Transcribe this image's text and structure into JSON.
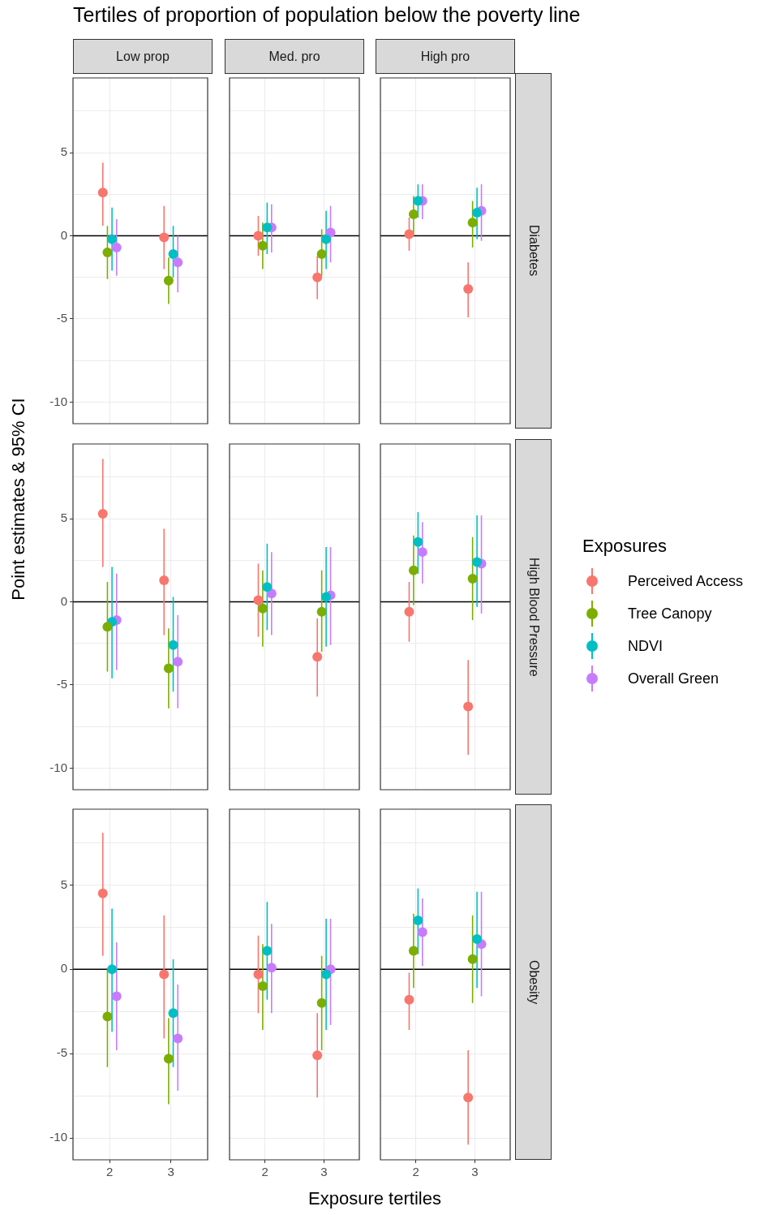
{
  "chart_data": [
    {
      "type": "scatter",
      "title": "Tertiles of proportion of population below the poverty line",
      "subtitle": "Low prop",
      "categories": [
        "2",
        "3"
      ],
      "ylim": [
        -11.3,
        9.5
      ],
      "yticks": [
        -10,
        {
          "value": -7.5,
          "label": null
        },
        -5,
        {
          "value": -2.5,
          "label": null
        },
        0,
        {
          "value": 2.5,
          "label": null
        },
        5,
        {
          "value": 7.5,
          "label": null
        }
      ],
      "grid": true,
      "marker": "circle",
      "tick_labels": "y",
      "ref_lines": [
        {
          "axis": "y",
          "value": 0,
          "color": "#000000"
        }
      ],
      "series": [
        {
          "color": "#f8766d",
          "values": [
            2.6,
            -0.1
          ],
          "errors": [
            [
              0.6,
              4.4
            ],
            [
              -2.0,
              1.8
            ]
          ]
        },
        {
          "color": "#7cae00",
          "values": [
            -1.0,
            -2.7
          ],
          "errors": [
            [
              -2.6,
              0.6
            ],
            [
              -4.1,
              -1.3
            ]
          ]
        },
        {
          "color": "#00bfc4",
          "values": [
            -0.2,
            -1.1
          ],
          "errors": [
            [
              -2.1,
              1.7
            ],
            [
              -2.5,
              0.6
            ]
          ]
        },
        {
          "color": "#c77cff",
          "values": [
            -0.7,
            -1.6
          ],
          "errors": [
            [
              -2.4,
              1.0
            ],
            [
              -3.4,
              0.0
            ]
          ]
        }
      ]
    },
    {
      "type": "scatter",
      "subtitle": "Med. pro",
      "categories": [
        "2",
        "3"
      ],
      "ylim": [
        -11.3,
        9.5
      ],
      "yticks": [
        -10,
        {
          "value": -7.5,
          "label": null
        },
        -5,
        {
          "value": -2.5,
          "label": null
        },
        0,
        {
          "value": 2.5,
          "label": null
        },
        5,
        {
          "value": 7.5,
          "label": null
        }
      ],
      "grid": true,
      "marker": "circle",
      "tick_labels": false,
      "ref_lines": [
        {
          "axis": "y",
          "value": 0,
          "color": "#000000"
        }
      ],
      "series": [
        {
          "color": "#f8766d",
          "values": [
            0.0,
            -2.5
          ],
          "errors": [
            [
              -1.2,
              1.2
            ],
            [
              -3.8,
              -1.2
            ]
          ]
        },
        {
          "color": "#7cae00",
          "values": [
            -0.6,
            -1.1
          ],
          "errors": [
            [
              -2.0,
              0.8
            ],
            [
              -2.4,
              0.4
            ]
          ]
        },
        {
          "color": "#00bfc4",
          "values": [
            0.5,
            -0.2
          ],
          "errors": [
            [
              -1.1,
              2.0
            ],
            [
              -2.0,
              1.5
            ]
          ]
        },
        {
          "color": "#c77cff",
          "values": [
            0.5,
            0.2
          ],
          "errors": [
            [
              -1.0,
              1.9
            ],
            [
              -1.6,
              1.8
            ]
          ]
        }
      ]
    },
    {
      "type": "scatter",
      "subtitle": "High pro",
      "y2label": "Diabetes",
      "categories": [
        "2",
        "3"
      ],
      "ylim": [
        -11.3,
        9.5
      ],
      "yticks": [
        -10,
        {
          "value": -7.5,
          "label": null
        },
        -5,
        {
          "value": -2.5,
          "label": null
        },
        0,
        {
          "value": 2.5,
          "label": null
        },
        5,
        {
          "value": 7.5,
          "label": null
        }
      ],
      "grid": true,
      "marker": "circle",
      "tick_labels": false,
      "ref_lines": [
        {
          "axis": "y",
          "value": 0,
          "color": "#000000"
        }
      ],
      "series": [
        {
          "color": "#f8766d",
          "values": [
            0.1,
            -3.2
          ],
          "errors": [
            [
              -0.9,
              1.1
            ],
            [
              -4.9,
              -1.6
            ]
          ]
        },
        {
          "color": "#7cae00",
          "values": [
            1.3,
            0.8
          ],
          "errors": [
            [
              0.1,
              2.4
            ],
            [
              -0.7,
              2.1
            ]
          ]
        },
        {
          "color": "#00bfc4",
          "values": [
            2.1,
            1.4
          ],
          "errors": [
            [
              1.1,
              3.1
            ],
            [
              -0.2,
              2.9
            ]
          ]
        },
        {
          "color": "#c77cff",
          "values": [
            2.1,
            1.5
          ],
          "errors": [
            [
              1.0,
              3.1
            ],
            [
              -0.3,
              3.1
            ]
          ]
        }
      ]
    },
    {
      "type": "scatter",
      "ylabel": "Point estimates & 95% CI",
      "categories": [
        "2",
        "3"
      ],
      "ylim": [
        -11.3,
        9.5
      ],
      "yticks": [
        -10,
        {
          "value": -7.5,
          "label": null
        },
        -5,
        {
          "value": -2.5,
          "label": null
        },
        0,
        {
          "value": 2.5,
          "label": null
        },
        5,
        {
          "value": 7.5,
          "label": null
        }
      ],
      "grid": true,
      "marker": "circle",
      "tick_labels": "y",
      "ref_lines": [
        {
          "axis": "y",
          "value": 0,
          "color": "#000000"
        }
      ],
      "series": [
        {
          "color": "#f8766d",
          "values": [
            5.3,
            1.3
          ],
          "errors": [
            [
              2.1,
              8.6
            ],
            [
              -2.0,
              4.4
            ]
          ]
        },
        {
          "color": "#7cae00",
          "values": [
            -1.5,
            -4.0
          ],
          "errors": [
            [
              -4.2,
              1.2
            ],
            [
              -6.4,
              -1.6
            ]
          ]
        },
        {
          "color": "#00bfc4",
          "values": [
            -1.2,
            -2.6
          ],
          "errors": [
            [
              -4.6,
              2.1
            ],
            [
              -5.4,
              0.3
            ]
          ]
        },
        {
          "color": "#c77cff",
          "values": [
            -1.1,
            -3.6
          ],
          "errors": [
            [
              -4.1,
              1.7
            ],
            [
              -6.4,
              -0.8
            ]
          ]
        }
      ]
    },
    {
      "type": "scatter",
      "categories": [
        "2",
        "3"
      ],
      "ylim": [
        -11.3,
        9.5
      ],
      "yticks": [
        -10,
        {
          "value": -7.5,
          "label": null
        },
        -5,
        {
          "value": -2.5,
          "label": null
        },
        0,
        {
          "value": 2.5,
          "label": null
        },
        5,
        {
          "value": 7.5,
          "label": null
        }
      ],
      "grid": true,
      "marker": "circle",
      "tick_labels": false,
      "ref_lines": [
        {
          "axis": "y",
          "value": 0,
          "color": "#000000"
        }
      ],
      "series": [
        {
          "color": "#f8766d",
          "values": [
            0.1,
            -3.3
          ],
          "errors": [
            [
              -2.1,
              2.3
            ],
            [
              -5.7,
              -1.0
            ]
          ]
        },
        {
          "color": "#7cae00",
          "values": [
            -0.4,
            -0.6
          ],
          "errors": [
            [
              -2.7,
              1.9
            ],
            [
              -3.0,
              1.9
            ]
          ]
        },
        {
          "color": "#00bfc4",
          "values": [
            0.9,
            0.3
          ],
          "errors": [
            [
              -1.7,
              3.5
            ],
            [
              -2.7,
              3.3
            ]
          ]
        },
        {
          "color": "#c77cff",
          "values": [
            0.5,
            0.4
          ],
          "errors": [
            [
              -2.0,
              3.0
            ],
            [
              -2.6,
              3.3
            ]
          ]
        }
      ]
    },
    {
      "type": "scatter",
      "y2label": "High Blood Pressure",
      "legend": "right",
      "legend_title": "Exposures",
      "categories": [
        "2",
        "3"
      ],
      "ylim": [
        -11.3,
        9.5
      ],
      "yticks": [
        -10,
        {
          "value": -7.5,
          "label": null
        },
        -5,
        {
          "value": -2.5,
          "label": null
        },
        0,
        {
          "value": 2.5,
          "label": null
        },
        5,
        {
          "value": 7.5,
          "label": null
        }
      ],
      "grid": true,
      "marker": "circle",
      "tick_labels": false,
      "ref_lines": [
        {
          "axis": "y",
          "value": 0,
          "color": "#000000"
        }
      ],
      "series": [
        {
          "name": "Perceived Access",
          "color": "#f8766d",
          "values": [
            -0.6,
            -6.3
          ],
          "errors": [
            [
              -2.4,
              1.2
            ],
            [
              -9.2,
              -3.5
            ]
          ]
        },
        {
          "name": "Tree Canopy",
          "color": "#7cae00",
          "values": [
            1.9,
            1.4
          ],
          "errors": [
            [
              -0.2,
              4.0
            ],
            [
              -1.1,
              3.9
            ]
          ]
        },
        {
          "name": "NDVI",
          "color": "#00bfc4",
          "values": [
            3.6,
            2.4
          ],
          "errors": [
            [
              1.7,
              5.4
            ],
            [
              -0.3,
              5.2
            ]
          ]
        },
        {
          "name": "Overall Green",
          "color": "#c77cff",
          "values": [
            3.0,
            2.3
          ],
          "errors": [
            [
              1.1,
              4.8
            ],
            [
              -0.7,
              5.2
            ]
          ]
        }
      ]
    },
    {
      "type": "scatter",
      "categories": [
        "2",
        "3"
      ],
      "ylim": [
        -11.3,
        9.5
      ],
      "yticks": [
        -10,
        {
          "value": -7.5,
          "label": null
        },
        -5,
        {
          "value": -2.5,
          "label": null
        },
        0,
        {
          "value": 2.5,
          "label": null
        },
        5,
        {
          "value": 7.5,
          "label": null
        }
      ],
      "grid": true,
      "marker": "circle",
      "ref_lines": [
        {
          "axis": "y",
          "value": 0,
          "color": "#000000"
        }
      ],
      "series": [
        {
          "color": "#f8766d",
          "values": [
            4.5,
            -0.3
          ],
          "errors": [
            [
              0.8,
              8.1
            ],
            [
              -4.1,
              3.2
            ]
          ]
        },
        {
          "color": "#7cae00",
          "values": [
            -2.8,
            -5.3
          ],
          "errors": [
            [
              -5.8,
              0.0
            ],
            [
              -8.0,
              -2.9
            ]
          ]
        },
        {
          "color": "#00bfc4",
          "values": [
            0.0,
            -2.6
          ],
          "errors": [
            [
              -3.7,
              3.6
            ],
            [
              -5.8,
              0.6
            ]
          ]
        },
        {
          "color": "#c77cff",
          "values": [
            -1.6,
            -4.1
          ],
          "errors": [
            [
              -4.8,
              1.6
            ],
            [
              -7.2,
              -0.9
            ]
          ]
        }
      ]
    },
    {
      "type": "scatter",
      "xlabel": "Exposure tertiles",
      "categories": [
        "2",
        "3"
      ],
      "ylim": [
        -11.3,
        9.5
      ],
      "yticks": [
        -10,
        {
          "value": -7.5,
          "label": null
        },
        -5,
        {
          "value": -2.5,
          "label": null
        },
        0,
        {
          "value": 2.5,
          "label": null
        },
        5,
        {
          "value": 7.5,
          "label": null
        }
      ],
      "grid": true,
      "marker": "circle",
      "tick_labels": "x",
      "ref_lines": [
        {
          "axis": "y",
          "value": 0,
          "color": "#000000"
        }
      ],
      "series": [
        {
          "color": "#f8766d",
          "values": [
            -0.3,
            -5.1
          ],
          "errors": [
            [
              -2.6,
              2.0
            ],
            [
              -7.6,
              -2.6
            ]
          ]
        },
        {
          "color": "#7cae00",
          "values": [
            -1.0,
            -2.0
          ],
          "errors": [
            [
              -3.6,
              1.5
            ],
            [
              -4.8,
              0.8
            ]
          ]
        },
        {
          "color": "#00bfc4",
          "values": [
            1.1,
            -0.3
          ],
          "errors": [
            [
              -1.8,
              4.0
            ],
            [
              -3.6,
              3.0
            ]
          ]
        },
        {
          "color": "#c77cff",
          "values": [
            0.1,
            0.0
          ],
          "errors": [
            [
              -2.6,
              2.7
            ],
            [
              -3.3,
              3.0
            ]
          ]
        }
      ]
    },
    {
      "type": "scatter",
      "y2label": "Obesity",
      "categories": [
        "2",
        "3"
      ],
      "ylim": [
        -11.3,
        9.5
      ],
      "yticks": [
        -10,
        {
          "value": -7.5,
          "label": null
        },
        -5,
        {
          "value": -2.5,
          "label": null
        },
        0,
        {
          "value": 2.5,
          "label": null
        },
        5,
        {
          "value": 7.5,
          "label": null
        }
      ],
      "grid": true,
      "marker": "circle",
      "tick_labels": "x",
      "ref_lines": [
        {
          "axis": "y",
          "value": 0,
          "color": "#000000"
        }
      ],
      "series": [
        {
          "color": "#f8766d",
          "values": [
            -1.8,
            -7.6
          ],
          "errors": [
            [
              -3.6,
              -0.2
            ],
            [
              -10.4,
              -4.8
            ]
          ]
        },
        {
          "color": "#7cae00",
          "values": [
            1.1,
            0.6
          ],
          "errors": [
            [
              -1.1,
              3.3
            ],
            [
              -2.0,
              3.2
            ]
          ]
        },
        {
          "color": "#00bfc4",
          "values": [
            2.9,
            1.8
          ],
          "errors": [
            [
              0.9,
              4.8
            ],
            [
              -1.1,
              4.6
            ]
          ]
        },
        {
          "color": "#c77cff",
          "values": [
            2.2,
            1.5
          ],
          "errors": [
            [
              0.2,
              4.2
            ],
            [
              -1.6,
              4.6
            ]
          ]
        }
      ]
    }
  ]
}
